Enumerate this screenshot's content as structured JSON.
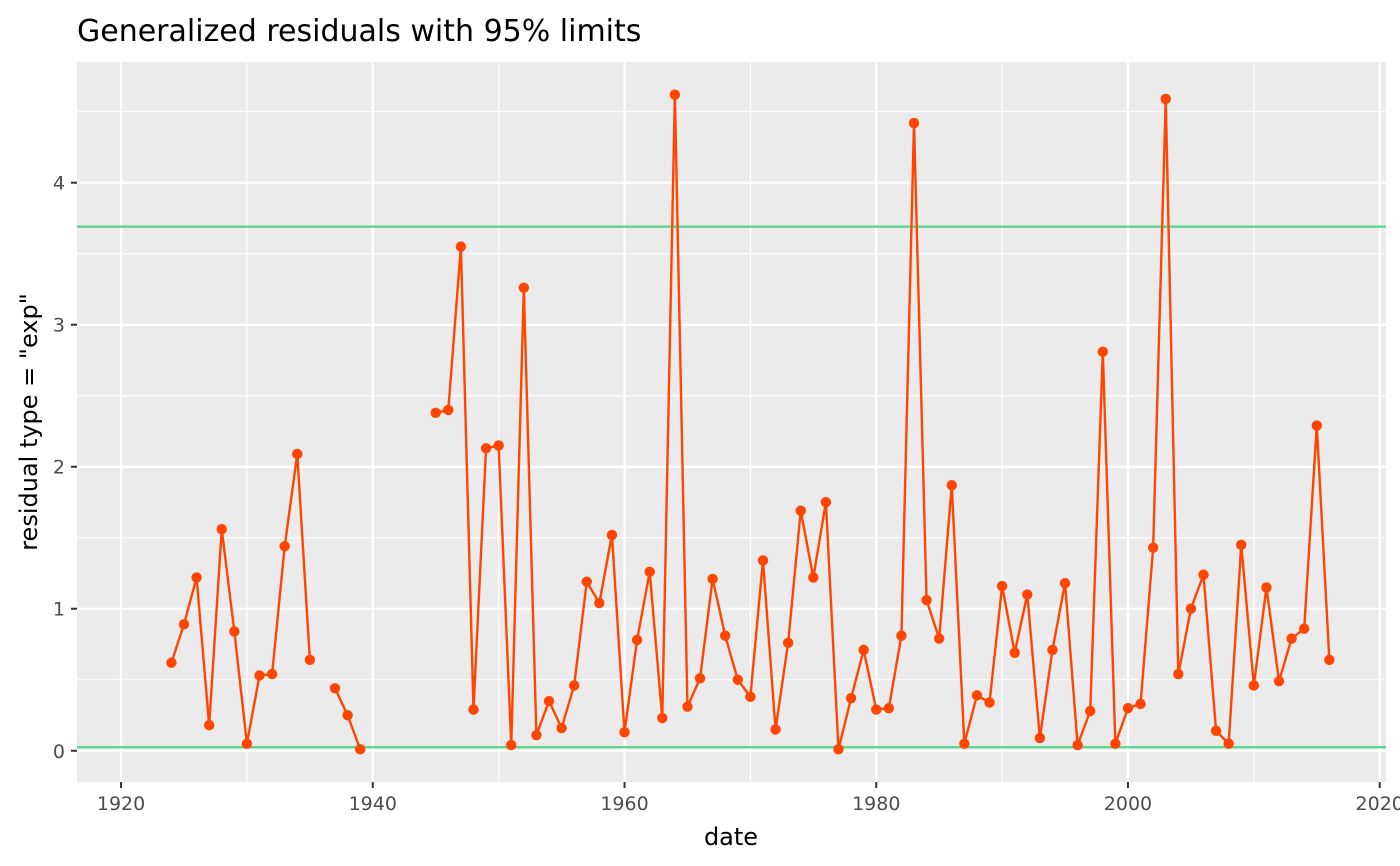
{
  "chart_data": {
    "type": "line",
    "title": "Generalized residuals with 95% limits",
    "xlabel": "date",
    "ylabel": "residual type = \"exp\"",
    "xlim": [
      1916.5,
      2020.5
    ],
    "ylim": [
      -0.22,
      4.85
    ],
    "x_ticks": [
      1920,
      1940,
      1960,
      1980,
      2000,
      2020
    ],
    "x_tick_labels": [
      "1920",
      "1940",
      "1960",
      "1980",
      "2000",
      "2020"
    ],
    "y_ticks": [
      0,
      1,
      2,
      3,
      4
    ],
    "y_tick_labels": [
      "0",
      "1",
      "2",
      "3",
      "4"
    ],
    "grid": true,
    "background": "#ebebeb",
    "series_color": "#ff4500",
    "limit_color": "#5fd68f",
    "limits": [
      0.025,
      3.69
    ],
    "series": [
      {
        "segments": [
          [
            [
              1924,
              0.62
            ],
            [
              1925,
              0.89
            ],
            [
              1926,
              1.22
            ],
            [
              1927,
              0.18
            ],
            [
              1928,
              1.56
            ],
            [
              1929,
              0.84
            ],
            [
              1930,
              0.05
            ],
            [
              1931,
              0.53
            ],
            [
              1932,
              0.54
            ],
            [
              1933,
              1.44
            ],
            [
              1934,
              2.09
            ],
            [
              1935,
              0.64
            ]
          ],
          [
            [
              1937,
              0.44
            ],
            [
              1938,
              0.25
            ],
            [
              1939,
              0.01
            ]
          ],
          [
            [
              1945,
              2.38
            ],
            [
              1946,
              2.4
            ],
            [
              1947,
              3.55
            ],
            [
              1948,
              0.29
            ],
            [
              1949,
              2.13
            ],
            [
              1950,
              2.15
            ],
            [
              1951,
              0.04
            ],
            [
              1952,
              3.26
            ],
            [
              1953,
              0.11
            ],
            [
              1954,
              0.35
            ],
            [
              1955,
              0.16
            ],
            [
              1956,
              0.46
            ],
            [
              1957,
              1.19
            ],
            [
              1958,
              1.04
            ],
            [
              1959,
              1.52
            ],
            [
              1960,
              0.13
            ],
            [
              1961,
              0.78
            ],
            [
              1962,
              1.26
            ],
            [
              1963,
              0.23
            ],
            [
              1964,
              4.62
            ],
            [
              1965,
              0.31
            ],
            [
              1966,
              0.51
            ],
            [
              1967,
              1.21
            ],
            [
              1968,
              0.81
            ],
            [
              1969,
              0.5
            ],
            [
              1970,
              0.38
            ],
            [
              1971,
              1.34
            ],
            [
              1972,
              0.15
            ],
            [
              1973,
              0.76
            ],
            [
              1974,
              1.69
            ],
            [
              1975,
              1.22
            ],
            [
              1976,
              1.75
            ],
            [
              1977,
              0.01
            ],
            [
              1978,
              0.37
            ],
            [
              1979,
              0.71
            ],
            [
              1980,
              0.29
            ],
            [
              1981,
              0.3
            ],
            [
              1982,
              0.81
            ],
            [
              1983,
              4.42
            ],
            [
              1984,
              1.06
            ],
            [
              1985,
              0.79
            ],
            [
              1986,
              1.87
            ],
            [
              1987,
              0.05
            ],
            [
              1988,
              0.39
            ],
            [
              1989,
              0.34
            ],
            [
              1990,
              1.16
            ],
            [
              1991,
              0.69
            ],
            [
              1992,
              1.1
            ],
            [
              1993,
              0.09
            ],
            [
              1994,
              0.71
            ],
            [
              1995,
              1.18
            ],
            [
              1996,
              0.04
            ],
            [
              1997,
              0.28
            ],
            [
              1998,
              2.81
            ],
            [
              1999,
              0.05
            ],
            [
              2000,
              0.3
            ],
            [
              2001,
              0.33
            ],
            [
              2002,
              1.43
            ],
            [
              2003,
              4.59
            ],
            [
              2004,
              0.54
            ],
            [
              2005,
              1.0
            ],
            [
              2006,
              1.24
            ],
            [
              2007,
              0.14
            ],
            [
              2008,
              0.05
            ],
            [
              2009,
              1.45
            ],
            [
              2010,
              0.46
            ],
            [
              2011,
              1.15
            ],
            [
              2012,
              0.49
            ],
            [
              2013,
              0.79
            ],
            [
              2014,
              0.86
            ],
            [
              2015,
              2.29
            ],
            [
              2016,
              0.64
            ]
          ]
        ]
      }
    ]
  }
}
